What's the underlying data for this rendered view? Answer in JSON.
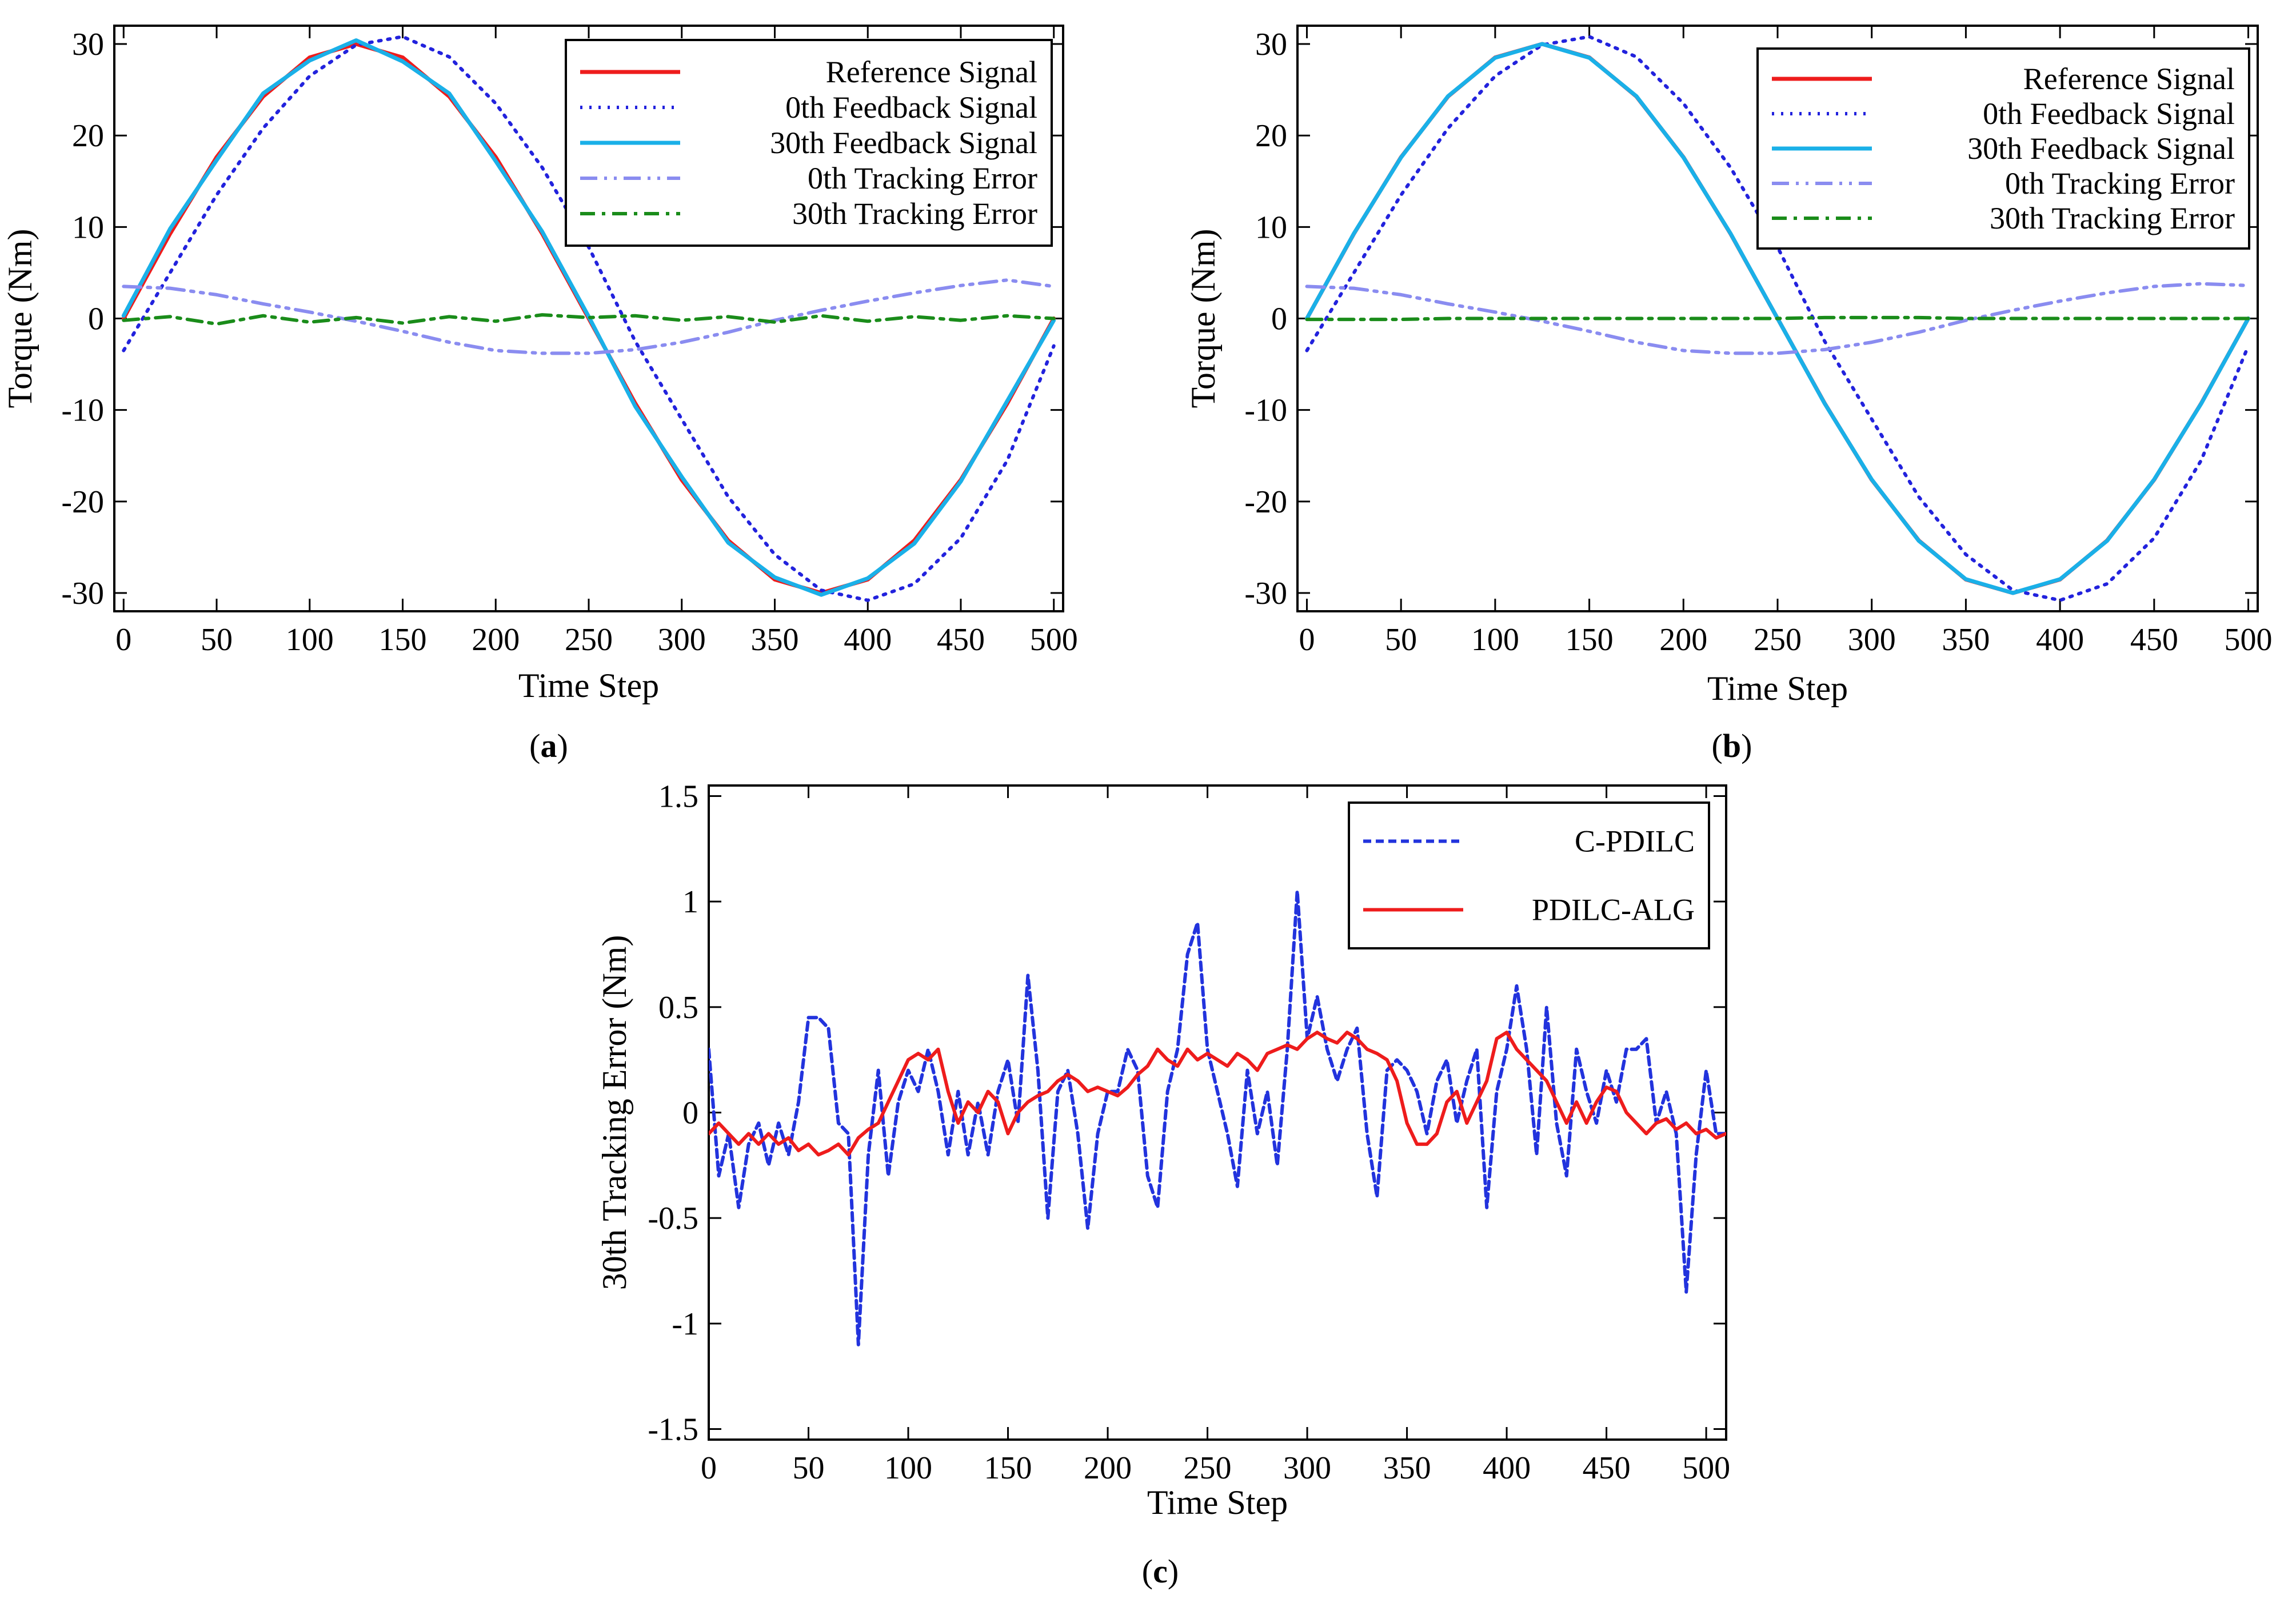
{
  "figure": {
    "captions": [
      "(a)",
      "(b)",
      "(c)"
    ],
    "caption_letters": [
      "a",
      "b",
      "c"
    ]
  },
  "styles": {
    "Reference Signal": {
      "color": "#ee1c1c",
      "dash": "none",
      "width": 7
    },
    "0th Feedback Signal": {
      "color": "#2222dd",
      "dash": "4 12",
      "width": 6
    },
    "30th Feedback Signal": {
      "color": "#1ab0e8",
      "dash": "none",
      "width": 7
    },
    "0th Tracking Error": {
      "color": "#8a8cf0",
      "dash": "30 12 5 12 5 12",
      "width": 6
    },
    "30th Tracking Error": {
      "color": "#1a8c1a",
      "dash": "26 12 6 12",
      "width": 6
    },
    "C-PDILC": {
      "color": "#2233dd",
      "dash": "14 8",
      "width": 6
    },
    "PDILC-ALG": {
      "color": "#ee1c1c",
      "dash": "none",
      "width": 6
    }
  },
  "chart_data": [
    {
      "id": "a",
      "type": "line",
      "title": "",
      "xlabel": "Time Step",
      "ylabel": "Torque (Nm)",
      "xlim": [
        -5,
        505
      ],
      "ylim": [
        -32,
        32
      ],
      "xticks": [
        0,
        50,
        100,
        150,
        200,
        250,
        300,
        350,
        400,
        450,
        500
      ],
      "yticks": [
        30,
        20,
        10,
        0,
        -10,
        -20,
        -30
      ],
      "legend_position": "top-right",
      "x": [
        0,
        25,
        50,
        75,
        100,
        125,
        150,
        175,
        200,
        225,
        250,
        275,
        300,
        325,
        350,
        375,
        400,
        425,
        450,
        475,
        500
      ],
      "series": [
        {
          "name": "Reference Signal",
          "values": [
            0,
            9.27,
            17.63,
            24.27,
            28.53,
            30.0,
            28.53,
            24.27,
            17.63,
            9.27,
            0,
            -9.27,
            -17.63,
            -24.27,
            -28.53,
            -30.0,
            -28.53,
            -24.27,
            -17.63,
            -9.27,
            0
          ]
        },
        {
          "name": "0th Feedback Signal",
          "values": [
            -3.5,
            5.0,
            13.5,
            20.8,
            26.5,
            29.9,
            30.8,
            28.6,
            23.5,
            16.5,
            7.8,
            -2.5,
            -11.0,
            -19.5,
            -25.8,
            -29.7,
            -30.8,
            -29.0,
            -24.0,
            -15.5,
            -3.0
          ]
        },
        {
          "name": "30th Feedback Signal",
          "values": [
            0.3,
            9.8,
            17.3,
            24.6,
            28.2,
            30.4,
            28.1,
            24.6,
            17.2,
            9.5,
            0.2,
            -9.6,
            -17.3,
            -24.5,
            -28.3,
            -30.2,
            -28.4,
            -24.6,
            -17.8,
            -9.0,
            -0.2
          ]
        },
        {
          "name": "0th Tracking Error",
          "values": [
            3.5,
            3.3,
            2.6,
            1.6,
            0.7,
            -0.3,
            -1.4,
            -2.6,
            -3.5,
            -3.8,
            -3.8,
            -3.4,
            -2.6,
            -1.5,
            -0.2,
            0.9,
            1.9,
            2.8,
            3.6,
            4.2,
            3.5
          ]
        },
        {
          "name": "30th Tracking Error",
          "values": [
            -0.2,
            0.2,
            -0.6,
            0.3,
            -0.4,
            0.1,
            -0.5,
            0.2,
            -0.3,
            0.4,
            0.1,
            0.3,
            -0.2,
            0.2,
            -0.4,
            0.3,
            -0.3,
            0.2,
            -0.2,
            0.3,
            0.0
          ]
        }
      ]
    },
    {
      "id": "b",
      "type": "line",
      "title": "",
      "xlabel": "Time Step",
      "ylabel": "Torque (Nm)",
      "xlim": [
        -5,
        505
      ],
      "ylim": [
        -32,
        32
      ],
      "xticks": [
        0,
        50,
        100,
        150,
        200,
        250,
        300,
        350,
        400,
        450,
        500
      ],
      "yticks": [
        30,
        20,
        10,
        0,
        -10,
        -20,
        -30
      ],
      "legend_position": "top-right",
      "x": [
        0,
        25,
        50,
        75,
        100,
        125,
        150,
        175,
        200,
        225,
        250,
        275,
        300,
        325,
        350,
        375,
        400,
        425,
        450,
        475,
        500
      ],
      "series": [
        {
          "name": "Reference Signal",
          "values": [
            0,
            9.27,
            17.63,
            24.27,
            28.53,
            30.0,
            28.53,
            24.27,
            17.63,
            9.27,
            0,
            -9.27,
            -17.63,
            -24.27,
            -28.53,
            -30.0,
            -28.53,
            -24.27,
            -17.63,
            -9.27,
            0
          ]
        },
        {
          "name": "0th Feedback Signal",
          "values": [
            -3.5,
            5.0,
            13.5,
            20.8,
            26.5,
            29.9,
            30.8,
            28.6,
            23.5,
            16.5,
            7.8,
            -2.5,
            -11.0,
            -19.5,
            -25.8,
            -29.7,
            -30.8,
            -29.0,
            -24.0,
            -15.5,
            -3.0
          ]
        },
        {
          "name": "30th Feedback Signal",
          "values": [
            0,
            9.3,
            17.6,
            24.3,
            28.5,
            30.0,
            28.5,
            24.3,
            17.6,
            9.3,
            0,
            -9.3,
            -17.6,
            -24.3,
            -28.5,
            -30.0,
            -28.5,
            -24.3,
            -17.6,
            -9.3,
            0
          ]
        },
        {
          "name": "0th Tracking Error",
          "values": [
            3.5,
            3.3,
            2.6,
            1.6,
            0.7,
            -0.3,
            -1.4,
            -2.6,
            -3.5,
            -3.8,
            -3.8,
            -3.4,
            -2.6,
            -1.5,
            -0.2,
            0.9,
            1.9,
            2.8,
            3.5,
            3.8,
            3.6
          ]
        },
        {
          "name": "30th Tracking Error",
          "values": [
            -0.1,
            -0.1,
            -0.1,
            0,
            0,
            0,
            0,
            0,
            0,
            0,
            0,
            0.1,
            0.1,
            0.1,
            0,
            0,
            0,
            0,
            0,
            0,
            0
          ]
        }
      ]
    },
    {
      "id": "c",
      "type": "line",
      "title": "",
      "xlabel": "Time Step",
      "ylabel": "30th Tracking Error (Nm)",
      "xlim": [
        0,
        510
      ],
      "ylim": [
        -1.55,
        1.55
      ],
      "xticks": [
        0,
        50,
        100,
        150,
        200,
        250,
        300,
        350,
        400,
        450,
        500
      ],
      "yticks": [
        1.5,
        1,
        0.5,
        0,
        -0.5,
        -1,
        -1.5
      ],
      "legend_position": "top-right",
      "x": [
        0,
        5,
        10,
        15,
        20,
        25,
        30,
        35,
        40,
        45,
        50,
        55,
        60,
        65,
        70,
        75,
        80,
        85,
        90,
        95,
        100,
        105,
        110,
        115,
        120,
        125,
        130,
        135,
        140,
        145,
        150,
        155,
        160,
        165,
        170,
        175,
        180,
        185,
        190,
        195,
        200,
        205,
        210,
        215,
        220,
        225,
        230,
        235,
        240,
        245,
        250,
        255,
        260,
        265,
        270,
        275,
        280,
        285,
        290,
        295,
        300,
        305,
        310,
        315,
        320,
        325,
        330,
        335,
        340,
        345,
        350,
        355,
        360,
        365,
        370,
        375,
        380,
        385,
        390,
        395,
        400,
        405,
        410,
        415,
        420,
        425,
        430,
        435,
        440,
        445,
        450,
        455,
        460,
        465,
        470,
        475,
        480,
        485,
        490,
        495,
        500,
        505,
        510
      ],
      "series": [
        {
          "name": "C-PDILC",
          "values": [
            0.3,
            -0.3,
            -0.1,
            -0.45,
            -0.15,
            -0.05,
            -0.25,
            -0.05,
            -0.2,
            0.05,
            0.45,
            0.45,
            0.4,
            -0.05,
            -0.1,
            -1.1,
            -0.2,
            0.2,
            -0.3,
            0.05,
            0.2,
            0.1,
            0.3,
            0.1,
            -0.2,
            0.1,
            -0.2,
            0.05,
            -0.2,
            0.1,
            0.25,
            -0.05,
            0.65,
            0.2,
            -0.5,
            0.1,
            0.2,
            -0.1,
            -0.55,
            -0.1,
            0.1,
            0.1,
            0.3,
            0.2,
            -0.3,
            -0.45,
            0.1,
            0.3,
            0.75,
            0.9,
            0.3,
            0.1,
            -0.1,
            -0.35,
            0.2,
            -0.1,
            0.1,
            -0.25,
            0.3,
            1.05,
            0.35,
            0.55,
            0.3,
            0.15,
            0.3,
            0.4,
            -0.1,
            -0.4,
            0.2,
            0.25,
            0.2,
            0.1,
            -0.1,
            0.15,
            0.25,
            -0.05,
            0.15,
            0.3,
            -0.45,
            0.1,
            0.3,
            0.6,
            0.3,
            -0.2,
            0.5,
            -0.05,
            -0.3,
            0.3,
            0.1,
            -0.05,
            0.2,
            0.05,
            0.3,
            0.3,
            0.35,
            -0.05,
            0.1,
            -0.1,
            -0.85,
            -0.2,
            0.2,
            -0.1,
            -0.1
          ]
        },
        {
          "name": "PDILC-ALG",
          "values": [
            -0.1,
            -0.05,
            -0.1,
            -0.15,
            -0.1,
            -0.15,
            -0.1,
            -0.15,
            -0.12,
            -0.18,
            -0.15,
            -0.2,
            -0.18,
            -0.15,
            -0.2,
            -0.12,
            -0.08,
            -0.05,
            0.05,
            0.15,
            0.25,
            0.28,
            0.25,
            0.3,
            0.1,
            -0.05,
            0.05,
            0.0,
            0.1,
            0.05,
            -0.1,
            0.0,
            0.05,
            0.08,
            0.1,
            0.15,
            0.18,
            0.15,
            0.1,
            0.12,
            0.1,
            0.08,
            0.12,
            0.18,
            0.22,
            0.3,
            0.25,
            0.22,
            0.3,
            0.25,
            0.28,
            0.25,
            0.22,
            0.28,
            0.25,
            0.2,
            0.28,
            0.3,
            0.32,
            0.3,
            0.35,
            0.38,
            0.35,
            0.33,
            0.38,
            0.35,
            0.3,
            0.28,
            0.25,
            0.15,
            -0.05,
            -0.15,
            -0.15,
            -0.1,
            0.05,
            0.1,
            -0.05,
            0.05,
            0.15,
            0.35,
            0.38,
            0.3,
            0.25,
            0.2,
            0.15,
            0.05,
            -0.05,
            0.05,
            -0.05,
            0.05,
            0.12,
            0.1,
            0.0,
            -0.05,
            -0.1,
            -0.05,
            -0.03,
            -0.08,
            -0.05,
            -0.1,
            -0.08,
            -0.12,
            -0.1
          ]
        }
      ]
    }
  ]
}
